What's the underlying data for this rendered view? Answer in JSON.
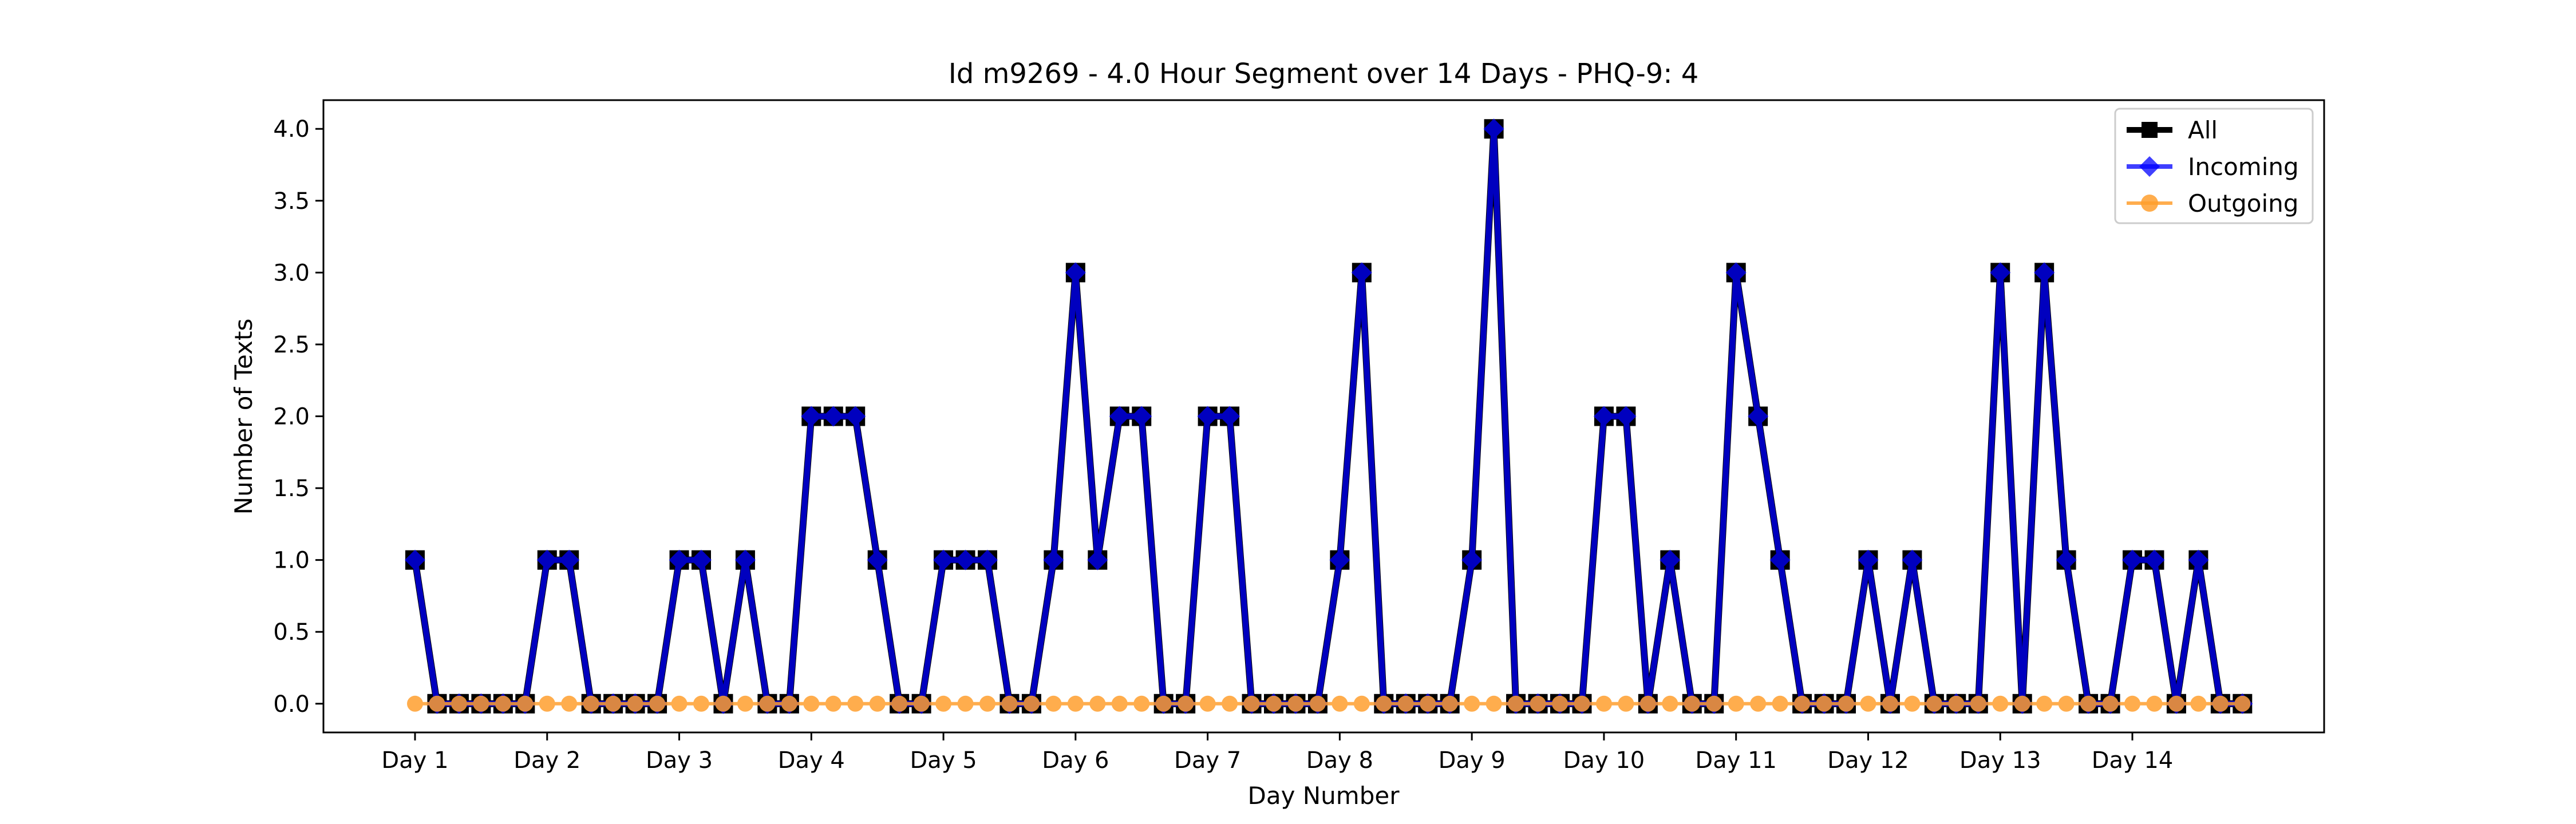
{
  "chart_data": {
    "type": "line",
    "title": "Id m9269 - 4.0 Hour Segment over 14 Days - PHQ-9: 4",
    "xlabel": "Day Number",
    "ylabel": "Number of Texts",
    "ylim": [
      -0.2,
      4.2
    ],
    "yticks": [
      "0.0",
      "0.5",
      "1.0",
      "1.5",
      "2.0",
      "2.5",
      "3.0",
      "3.5",
      "4.0"
    ],
    "xticks": [
      "Day 1",
      "Day 2",
      "Day 3",
      "Day 4",
      "Day 5",
      "Day 6",
      "Day 7",
      "Day 8",
      "Day 9",
      "Day 10",
      "Day 11",
      "Day 12",
      "Day 13",
      "Day 14"
    ],
    "points_per_day": 6,
    "legend_position": "top-right",
    "grid": false,
    "series": [
      {
        "name": "All",
        "color": "#000000",
        "marker": "square",
        "values": [
          1,
          0,
          0,
          0,
          0,
          0,
          1,
          1,
          0,
          0,
          0,
          0,
          1,
          1,
          0,
          1,
          0,
          0,
          2,
          2,
          2,
          1,
          0,
          0,
          1,
          1,
          1,
          0,
          0,
          1,
          3,
          1,
          2,
          2,
          0,
          0,
          2,
          2,
          0,
          0,
          0,
          0,
          1,
          3,
          0,
          0,
          0,
          0,
          1,
          4,
          0,
          0,
          0,
          0,
          2,
          2,
          0,
          1,
          0,
          0,
          3,
          2,
          1,
          0,
          0,
          0,
          1,
          0,
          1,
          0,
          0,
          0,
          3,
          0,
          3,
          1,
          0,
          0,
          1,
          1,
          0,
          1,
          0,
          0
        ]
      },
      {
        "name": "Incoming",
        "color": "#0000ff",
        "marker": "diamond",
        "values": [
          1,
          0,
          0,
          0,
          0,
          0,
          1,
          1,
          0,
          0,
          0,
          0,
          1,
          1,
          0,
          1,
          0,
          0,
          2,
          2,
          2,
          1,
          0,
          0,
          1,
          1,
          1,
          0,
          0,
          1,
          3,
          1,
          2,
          2,
          0,
          0,
          2,
          2,
          0,
          0,
          0,
          0,
          1,
          3,
          0,
          0,
          0,
          0,
          1,
          4,
          0,
          0,
          0,
          0,
          2,
          2,
          0,
          1,
          0,
          0,
          3,
          2,
          1,
          0,
          0,
          0,
          1,
          0,
          1,
          0,
          0,
          0,
          3,
          0,
          3,
          1,
          0,
          0,
          1,
          1,
          0,
          1,
          0,
          0
        ]
      },
      {
        "name": "Outgoing",
        "color": "#ff9f2e",
        "marker": "circle",
        "values": [
          0,
          0,
          0,
          0,
          0,
          0,
          0,
          0,
          0,
          0,
          0,
          0,
          0,
          0,
          0,
          0,
          0,
          0,
          0,
          0,
          0,
          0,
          0,
          0,
          0,
          0,
          0,
          0,
          0,
          0,
          0,
          0,
          0,
          0,
          0,
          0,
          0,
          0,
          0,
          0,
          0,
          0,
          0,
          0,
          0,
          0,
          0,
          0,
          0,
          0,
          0,
          0,
          0,
          0,
          0,
          0,
          0,
          0,
          0,
          0,
          0,
          0,
          0,
          0,
          0,
          0,
          0,
          0,
          0,
          0,
          0,
          0,
          0,
          0,
          0,
          0,
          0,
          0,
          0,
          0,
          0,
          0,
          0,
          0
        ]
      }
    ]
  }
}
